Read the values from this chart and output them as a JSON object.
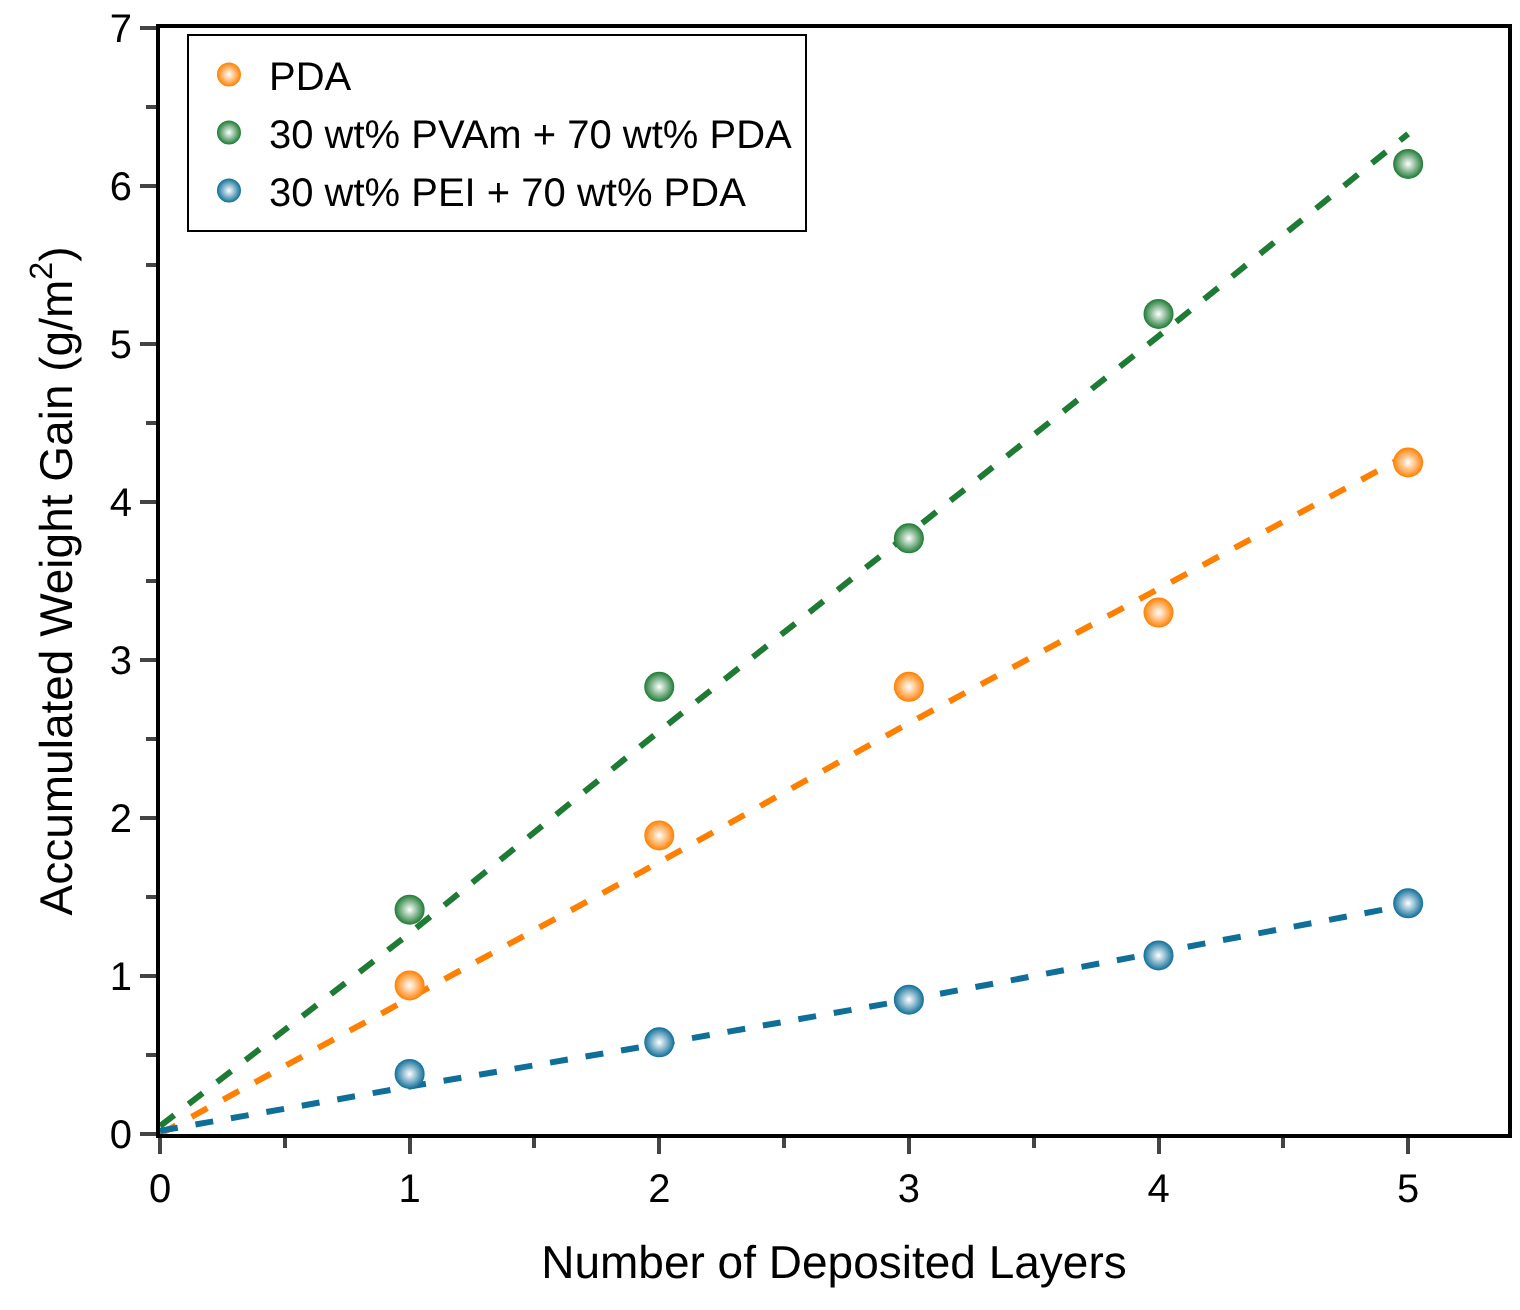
{
  "chart_data": {
    "type": "scatter",
    "xlabel": "Number of Deposited Layers",
    "ylabel": "Accumulated Weight Gain (g/m$^{2}$)",
    "x": [
      1,
      2,
      3,
      4,
      5
    ],
    "series": [
      {
        "name": "PDA",
        "color": "#ff8000",
        "marker": "circle",
        "values": [
          0.94,
          1.89,
          2.83,
          3.3,
          4.25
        ]
      },
      {
        "name": "30 wt% PVAm + 70 wt% PDA",
        "color": "#1e7b34",
        "marker": "circle",
        "values": [
          1.42,
          2.83,
          3.77,
          5.19,
          6.14
        ]
      },
      {
        "name": "30 wt% PEI + 70 wt% PDA",
        "color": "#0f6f99",
        "marker": "circle",
        "values": [
          0.38,
          0.58,
          0.85,
          1.13,
          1.46
        ]
      },
      {
        "color": "#ff8000",
        "type": "line",
        "line_style": "dashed",
        "x": [
          0,
          1,
          2,
          3,
          4,
          5
        ],
        "values": [
          0,
          0.86,
          1.72,
          2.6,
          3.45,
          4.3
        ]
      },
      {
        "color": "#1e7b34",
        "type": "line",
        "line_style": "dashed",
        "x": [
          0,
          1,
          2,
          3,
          4,
          5
        ],
        "values": [
          0.05,
          1.27,
          2.55,
          3.8,
          5.05,
          6.33
        ]
      },
      {
        "color": "#0f6f99",
        "type": "line",
        "line_style": "dashed",
        "x": [
          0,
          1,
          2,
          3,
          4,
          5
        ],
        "values": [
          0.02,
          0.3,
          0.57,
          0.85,
          1.15,
          1.45
        ]
      }
    ],
    "xlim": [
      0,
      5.4
    ],
    "xticks": [
      0,
      1,
      2,
      3,
      4,
      5
    ],
    "ylim": [
      0,
      7
    ],
    "yticks": [
      0,
      1,
      2,
      3,
      4,
      5,
      6,
      7
    ],
    "grid": false,
    "legend": "top left"
  }
}
